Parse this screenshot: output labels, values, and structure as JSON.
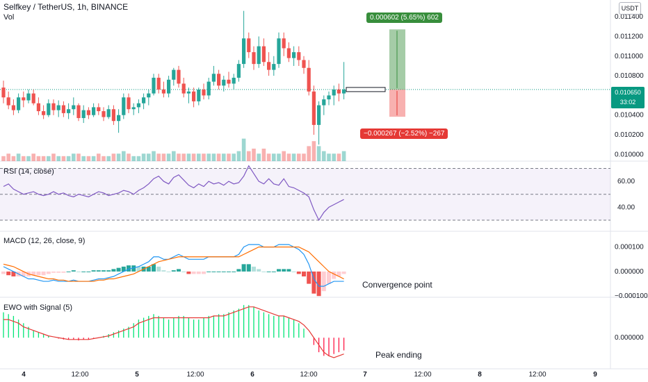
{
  "header": {
    "symbol": "Selfkey / TetherUS, 1h, BINANCE",
    "vol_label": "Vol",
    "currency": "USDT"
  },
  "price_axis": [
    "0.011400",
    "0.011200",
    "0.011000",
    "0.010800",
    "0.010400",
    "0.010200",
    "0.010000"
  ],
  "current_price": {
    "value": "0.010650",
    "countdown": "33:02"
  },
  "position_tool": {
    "target_label": "0.000602 (5.65%) 602",
    "stop_label": "−0.000267 (−2.52%) −267"
  },
  "rsi": {
    "title": "RSI (14, close)",
    "ticks": [
      "60.00",
      "40.00"
    ]
  },
  "macd": {
    "title": "MACD (12, 26, close, 9)",
    "ticks": [
      "0.000100",
      "0.000000",
      "−0.000100"
    ],
    "annotation": "Convergence point"
  },
  "ewo": {
    "title": "EWO with Signal (5)",
    "ticks": [
      "0.000000"
    ],
    "annotation": "Peak ending"
  },
  "time_axis": [
    "4",
    "12:00",
    "5",
    "12:00",
    "6",
    "12:00",
    "7",
    "12:00",
    "8",
    "12:00",
    "9"
  ],
  "colors": {
    "up": "#26a69a",
    "down": "#ef5350",
    "rsi": "#7e57c2",
    "macd": "#2196f3",
    "signal": "#ff6d00",
    "ewo_up": "#00e676",
    "ewo_down": "#ff1744"
  },
  "chart_data": [
    {
      "type": "candlestick",
      "title": "Selfkey / TetherUS, 1h, BINANCE",
      "ylim": [
        0.00996,
        0.0115
      ],
      "candles": [
        [
          0.01068,
          0.01075,
          0.01052,
          0.01058
        ],
        [
          0.01058,
          0.01064,
          0.01046,
          0.0105
        ],
        [
          0.0105,
          0.01056,
          0.0104,
          0.01045
        ],
        [
          0.01045,
          0.01062,
          0.01042,
          0.01058
        ],
        [
          0.01058,
          0.01064,
          0.01048,
          0.01055
        ],
        [
          0.01055,
          0.01066,
          0.01052,
          0.01062
        ],
        [
          0.01062,
          0.01066,
          0.0105,
          0.01052
        ],
        [
          0.01052,
          0.01058,
          0.0104,
          0.01044
        ],
        [
          0.01044,
          0.0105,
          0.01036,
          0.0104
        ],
        [
          0.0104,
          0.01056,
          0.01038,
          0.01052
        ],
        [
          0.01052,
          0.01056,
          0.0104,
          0.01045
        ],
        [
          0.01045,
          0.01055,
          0.01038,
          0.0105
        ],
        [
          0.0105,
          0.01054,
          0.01038,
          0.01042
        ],
        [
          0.01042,
          0.01052,
          0.01036,
          0.01046
        ],
        [
          0.01046,
          0.01058,
          0.0104,
          0.0105
        ],
        [
          0.0105,
          0.01052,
          0.01034,
          0.01037
        ],
        [
          0.01037,
          0.0105,
          0.01032,
          0.01045
        ],
        [
          0.01045,
          0.01048,
          0.01036,
          0.0104
        ],
        [
          0.0104,
          0.01052,
          0.01038,
          0.01048
        ],
        [
          0.01048,
          0.01052,
          0.0104,
          0.01044
        ],
        [
          0.01044,
          0.01048,
          0.01034,
          0.01038
        ],
        [
          0.01038,
          0.0105,
          0.01036,
          0.01046
        ],
        [
          0.01046,
          0.0105,
          0.0103,
          0.01034
        ],
        [
          0.01034,
          0.01046,
          0.01022,
          0.0104
        ],
        [
          0.0104,
          0.01062,
          0.01036,
          0.01058
        ],
        [
          0.01058,
          0.01062,
          0.01042,
          0.01046
        ],
        [
          0.01046,
          0.01052,
          0.0104,
          0.01048
        ],
        [
          0.01048,
          0.01056,
          0.01042,
          0.01052
        ],
        [
          0.01052,
          0.01062,
          0.01046,
          0.01058
        ],
        [
          0.01058,
          0.01066,
          0.0105,
          0.01062
        ],
        [
          0.01062,
          0.01082,
          0.0106,
          0.01078
        ],
        [
          0.01078,
          0.01082,
          0.01062,
          0.01066
        ],
        [
          0.01066,
          0.01074,
          0.01058,
          0.01062
        ],
        [
          0.01062,
          0.0108,
          0.01058,
          0.01076
        ],
        [
          0.01076,
          0.01088,
          0.0107,
          0.01086
        ],
        [
          0.01086,
          0.0109,
          0.01068,
          0.01072
        ],
        [
          0.01072,
          0.01078,
          0.01058,
          0.01062
        ],
        [
          0.01062,
          0.01068,
          0.01052,
          0.01064
        ],
        [
          0.01064,
          0.01068,
          0.01048,
          0.01054
        ],
        [
          0.01054,
          0.01068,
          0.0105,
          0.01066
        ],
        [
          0.01066,
          0.01072,
          0.01056,
          0.0106
        ],
        [
          0.0106,
          0.01078,
          0.01056,
          0.01074
        ],
        [
          0.01074,
          0.0109,
          0.0107,
          0.01082
        ],
        [
          0.01082,
          0.01086,
          0.01066,
          0.0107
        ],
        [
          0.0107,
          0.0108,
          0.01064,
          0.01076
        ],
        [
          0.01076,
          0.01084,
          0.01068,
          0.01072
        ],
        [
          0.01072,
          0.01082,
          0.01066,
          0.01078
        ],
        [
          0.01078,
          0.01096,
          0.01074,
          0.01092
        ],
        [
          0.01092,
          0.01146,
          0.01088,
          0.01118
        ],
        [
          0.01118,
          0.01124,
          0.01098,
          0.01104
        ],
        [
          0.01104,
          0.0111,
          0.01086,
          0.01092
        ],
        [
          0.01092,
          0.0112,
          0.01088,
          0.0111
        ],
        [
          0.0111,
          0.01118,
          0.0109,
          0.01094
        ],
        [
          0.01094,
          0.01104,
          0.0108,
          0.01086
        ],
        [
          0.01086,
          0.011,
          0.0108,
          0.01092
        ],
        [
          0.01092,
          0.01124,
          0.01088,
          0.01118
        ],
        [
          0.01118,
          0.01124,
          0.011,
          0.01108
        ],
        [
          0.01108,
          0.01114,
          0.01094,
          0.01098
        ],
        [
          0.01098,
          0.0111,
          0.0109,
          0.01104
        ],
        [
          0.01104,
          0.0111,
          0.0109,
          0.01096
        ],
        [
          0.01096,
          0.011,
          0.01082,
          0.01088
        ],
        [
          0.01088,
          0.01096,
          0.0106,
          0.01064
        ],
        [
          0.01064,
          0.0107,
          0.0102,
          0.0103
        ],
        [
          0.0103,
          0.01054,
          0.0101,
          0.0105
        ],
        [
          0.0105,
          0.0106,
          0.0104,
          0.01056
        ],
        [
          0.01056,
          0.01064,
          0.0105,
          0.0106
        ],
        [
          0.0106,
          0.0107,
          0.0105,
          0.01066
        ],
        [
          0.01066,
          0.01072,
          0.01054,
          0.01062
        ],
        [
          0.01062,
          0.01094,
          0.01056,
          0.01066
        ]
      ],
      "volume": [
        2,
        3,
        2,
        3,
        2,
        2,
        3,
        2,
        2,
        2,
        3,
        2,
        2,
        2,
        3,
        3,
        2,
        2,
        2,
        3,
        2,
        2,
        3,
        3,
        4,
        3,
        2,
        2,
        3,
        3,
        4,
        3,
        3,
        3,
        4,
        3,
        3,
        3,
        3,
        3,
        3,
        3,
        3,
        3,
        3,
        3,
        3,
        4,
        9,
        4,
        5,
        3,
        5,
        3,
        3,
        3,
        4,
        3,
        3,
        3,
        3,
        6,
        8,
        6,
        4,
        3,
        3,
        3,
        4
      ],
      "price_ticks": [
        0.0114,
        0.0112,
        0.011,
        0.0108,
        0.0104,
        0.0102,
        0.01
      ]
    },
    {
      "type": "line",
      "title": "RSI (14, close)",
      "ylim": [
        23,
        74
      ],
      "bands": [
        30,
        50,
        70
      ],
      "values": [
        56,
        58,
        54,
        52,
        50,
        51,
        52,
        50,
        49,
        50,
        52,
        50,
        51,
        49,
        48,
        50,
        49,
        48,
        50,
        52,
        51,
        49,
        50,
        51,
        53,
        52,
        50,
        53,
        55,
        58,
        62,
        64,
        60,
        58,
        63,
        65,
        61,
        57,
        55,
        58,
        56,
        60,
        58,
        59,
        57,
        60,
        58,
        59,
        64,
        72,
        66,
        60,
        58,
        62,
        58,
        57,
        62,
        56,
        55,
        53,
        51,
        48,
        38,
        30,
        36,
        40,
        42,
        44,
        46
      ]
    },
    {
      "type": "macd",
      "title": "MACD (12, 26, close, 9)",
      "ylim": [
        -0.000105,
        0.00015
      ],
      "macd": [
        2e-05,
        1e-05,
        0.0,
        -1e-05,
        -2e-05,
        -3e-05,
        -3e-05,
        -3.5e-05,
        -4e-05,
        -4e-05,
        -3.5e-05,
        -4e-05,
        -4e-05,
        -4e-05,
        -3.5e-05,
        -4e-05,
        -4e-05,
        -4e-05,
        -3.5e-05,
        -3e-05,
        -3e-05,
        -2.5e-05,
        -2e-05,
        -1e-05,
        0.0,
        1e-05,
        1.5e-05,
        2e-05,
        3e-05,
        4e-05,
        6e-05,
        6e-05,
        5e-05,
        5e-05,
        6e-05,
        7e-05,
        6e-05,
        5e-05,
        5e-05,
        5e-05,
        5e-05,
        6e-05,
        6e-05,
        6e-05,
        6e-05,
        6e-05,
        6e-05,
        7e-05,
        0.0001,
        0.00011,
        0.00011,
        0.00011,
        0.0001,
        0.0001,
        0.0001,
        0.00011,
        0.00011,
        0.00011,
        0.0001,
        9e-05,
        7e-05,
        3e-05,
        -3e-05,
        -6e-05,
        -6e-05,
        -5e-05,
        -4e-05,
        -4e-05,
        -4e-05
      ],
      "signal": [
        3e-05,
        2.5e-05,
        2e-05,
        1e-05,
        0.0,
        -1e-05,
        -1.5e-05,
        -2e-05,
        -2.5e-05,
        -3e-05,
        -3e-05,
        -3.5e-05,
        -3.5e-05,
        -4e-05,
        -4e-05,
        -4e-05,
        -4e-05,
        -4e-05,
        -4e-05,
        -3.5e-05,
        -3.5e-05,
        -3e-05,
        -3e-05,
        -2.5e-05,
        -2e-05,
        -1.5e-05,
        -1e-05,
        0.0,
        1e-05,
        2e-05,
        3e-05,
        4e-05,
        4.5e-05,
        5e-05,
        5.5e-05,
        6e-05,
        6e-05,
        6e-05,
        6e-05,
        6e-05,
        6e-05,
        6e-05,
        6e-05,
        6e-05,
        6e-05,
        6e-05,
        6e-05,
        6e-05,
        7e-05,
        8e-05,
        9e-05,
        0.0001,
        0.0001,
        0.0001,
        0.0001,
        0.0001,
        0.0001,
        0.0001,
        0.0001,
        0.0001,
        9e-05,
        8e-05,
        6e-05,
        4e-05,
        2e-05,
        0.0,
        -1e-05,
        -2e-05,
        -3e-05
      ],
      "histogram": [
        -1e-05,
        -1.5e-05,
        -2e-05,
        -2e-05,
        -2e-05,
        -2e-05,
        -1.5e-05,
        -1.5e-05,
        -1.5e-05,
        -1e-05,
        -5e-06,
        -5e-06,
        -5e-06,
        0.0,
        5e-06,
        0.0,
        0.0,
        0.0,
        5e-06,
        5e-06,
        5e-06,
        5e-06,
        1e-05,
        1.5e-05,
        2e-05,
        2.5e-05,
        2.5e-05,
        2e-05,
        2e-05,
        2e-05,
        3e-05,
        2e-05,
        5e-06,
        0.0,
        5e-06,
        1e-05,
        0.0,
        -1e-05,
        -1e-05,
        -1e-05,
        -1e-05,
        0.0,
        0.0,
        0.0,
        0.0,
        0.0,
        0.0,
        1e-05,
        3e-05,
        3e-05,
        2e-05,
        1e-05,
        0.0,
        0.0,
        0.0,
        1e-05,
        1e-05,
        1e-05,
        0.0,
        -1e-05,
        -2e-05,
        -5e-05,
        -9e-05,
        -0.0001,
        -8e-05,
        -5e-05,
        -3e-05,
        -2e-05,
        -1e-05
      ]
    },
    {
      "type": "histogram",
      "title": "EWO with Signal (5)",
      "ylim": [
        -0.00016,
        0.0002
      ],
      "values": [
        0.00014,
        0.00013,
        0.00012,
        0.0001,
        8e-05,
        6e-05,
        4e-05,
        3e-05,
        2e-05,
        1e-05,
        0.0,
        -5e-06,
        -1e-05,
        -1e-05,
        -1e-05,
        -1.5e-05,
        -1e-05,
        -1e-05,
        -5e-06,
        0.0,
        1e-05,
        2e-05,
        3e-05,
        4e-05,
        5e-05,
        6e-05,
        8e-05,
        0.0001,
        0.00011,
        0.00012,
        0.00013,
        0.00012,
        0.00011,
        0.0001,
        0.00011,
        0.00012,
        0.00012,
        0.00011,
        0.0001,
        0.0001,
        0.00011,
        0.00012,
        0.00012,
        0.00013,
        0.00013,
        0.00014,
        0.00015,
        0.00016,
        0.00018,
        0.00018,
        0.00017,
        0.00015,
        0.00014,
        0.00013,
        0.00012,
        0.00012,
        0.00012,
        0.00011,
        0.0001,
        8e-05,
        5e-05,
        0.0,
        -4e-05,
        -8e-05,
        -0.0001,
        -0.0001,
        -9e-05,
        -8e-05,
        -7e-05
      ],
      "signal": [
        0.0001,
        0.0001,
        9e-05,
        8e-05,
        6e-05,
        5e-05,
        4e-05,
        3e-05,
        2e-05,
        1e-05,
        5e-06,
        0.0,
        -5e-06,
        -1e-05,
        -1e-05,
        -1e-05,
        -1e-05,
        -1e-05,
        -5e-06,
        0.0,
        5e-06,
        1e-05,
        2e-05,
        3e-05,
        4e-05,
        5e-05,
        6e-05,
        8e-05,
        9e-05,
        0.0001,
        0.00011,
        0.00011,
        0.00011,
        0.00011,
        0.00011,
        0.00011,
        0.00011,
        0.00011,
        0.00011,
        0.00011,
        0.00011,
        0.00011,
        0.00012,
        0.00012,
        0.00012,
        0.00013,
        0.00014,
        0.00015,
        0.00016,
        0.00017,
        0.00017,
        0.00016,
        0.00015,
        0.00014,
        0.00013,
        0.00012,
        0.00012,
        0.00011,
        0.0001,
        9e-05,
        7e-05,
        4e-05,
        0.0,
        -4e-05,
        -8e-05,
        -0.0001,
        -0.00011,
        -0.0001,
        -9e-05
      ]
    }
  ]
}
